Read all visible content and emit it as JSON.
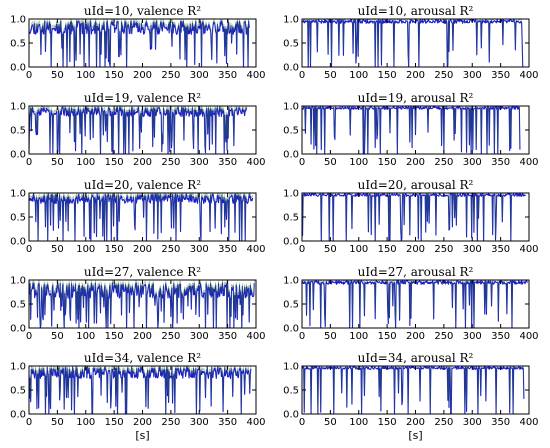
{
  "figure": {
    "x_axis_label": "[s]",
    "line_color": "#1a1ad6",
    "band_color": "#2e6b2e"
  },
  "chart_data": [
    {
      "type": "line",
      "title_prefix": "uId=10, valence",
      "title_math": "R²",
      "xlim": [
        0,
        400
      ],
      "ylim": [
        0,
        1
      ],
      "xticks": [
        "0",
        "50",
        "100",
        "150",
        "200",
        "250",
        "300",
        "350",
        "400"
      ],
      "yticks": [
        "0.0",
        "0.5",
        "1.0"
      ],
      "series": [
        {
          "seed": 11,
          "n": 390,
          "base": 0.82,
          "noise": 0.14,
          "dip_prob": 0.09,
          "values_range": [
            0,
            1
          ]
        }
      ]
    },
    {
      "type": "line",
      "title_prefix": "uId=10, arousal",
      "title_math": "R²",
      "xlim": [
        0,
        400
      ],
      "ylim": [
        0,
        1
      ],
      "xticks": [
        "0",
        "50",
        "100",
        "150",
        "200",
        "250",
        "300",
        "350",
        "400"
      ],
      "yticks": [
        "0.0",
        "0.5",
        "1.0"
      ],
      "series": [
        {
          "seed": 21,
          "n": 390,
          "base": 0.95,
          "noise": 0.04,
          "dip_prob": 0.07,
          "values_range": [
            0,
            1
          ]
        }
      ]
    },
    {
      "type": "line",
      "title_prefix": "uId=19, valence",
      "title_math": "R²",
      "xlim": [
        0,
        400
      ],
      "ylim": [
        0,
        1
      ],
      "xticks": [
        "0",
        "50",
        "100",
        "150",
        "200",
        "250",
        "300",
        "350",
        "400"
      ],
      "yticks": [
        "0.0",
        "0.5",
        "1.0"
      ],
      "series": [
        {
          "seed": 31,
          "n": 385,
          "base": 0.88,
          "noise": 0.1,
          "dip_prob": 0.11,
          "values_range": [
            0,
            1
          ]
        }
      ]
    },
    {
      "type": "line",
      "title_prefix": "uId=19, arousal",
      "title_math": "R²",
      "xlim": [
        0,
        400
      ],
      "ylim": [
        0,
        1
      ],
      "xticks": [
        "0",
        "50",
        "100",
        "150",
        "200",
        "250",
        "300",
        "350",
        "400"
      ],
      "yticks": [
        "0.0",
        "0.5",
        "1.0"
      ],
      "series": [
        {
          "seed": 41,
          "n": 385,
          "base": 0.96,
          "noise": 0.03,
          "dip_prob": 0.08,
          "values_range": [
            0,
            1
          ]
        }
      ]
    },
    {
      "type": "line",
      "title_prefix": "uId=20, valence",
      "title_math": "R²",
      "xlim": [
        0,
        400
      ],
      "ylim": [
        0,
        1
      ],
      "xticks": [
        "0",
        "50",
        "100",
        "150",
        "200",
        "250",
        "300",
        "350",
        "400"
      ],
      "yticks": [
        "0.0",
        "0.5",
        "1.0"
      ],
      "series": [
        {
          "seed": 51,
          "n": 395,
          "base": 0.88,
          "noise": 0.1,
          "dip_prob": 0.1,
          "values_range": [
            0,
            1
          ]
        }
      ]
    },
    {
      "type": "line",
      "title_prefix": "uId=20, arousal",
      "title_math": "R²",
      "xlim": [
        0,
        400
      ],
      "ylim": [
        0,
        1
      ],
      "xticks": [
        "0",
        "50",
        "100",
        "150",
        "200",
        "250",
        "300",
        "350",
        "400"
      ],
      "yticks": [
        "0.0",
        "0.5",
        "1.0"
      ],
      "series": [
        {
          "seed": 61,
          "n": 395,
          "base": 0.96,
          "noise": 0.03,
          "dip_prob": 0.08,
          "values_range": [
            0,
            1
          ]
        }
      ]
    },
    {
      "type": "line",
      "title_prefix": "uId=27, valence",
      "title_math": "R²",
      "xlim": [
        0,
        400
      ],
      "ylim": [
        0,
        1
      ],
      "xticks": [
        "0",
        "50",
        "100",
        "150",
        "200",
        "250",
        "300",
        "350",
        "400"
      ],
      "yticks": [
        "0.0",
        "0.5",
        "1.0"
      ],
      "series": [
        {
          "seed": 71,
          "n": 398,
          "base": 0.78,
          "noise": 0.16,
          "dip_prob": 0.12,
          "values_range": [
            0,
            1
          ]
        }
      ]
    },
    {
      "type": "line",
      "title_prefix": "uId=27, arousal",
      "title_math": "R²",
      "xlim": [
        0,
        400
      ],
      "ylim": [
        0,
        1
      ],
      "xticks": [
        "0",
        "50",
        "100",
        "150",
        "200",
        "250",
        "300",
        "350",
        "400"
      ],
      "yticks": [
        "0.0",
        "0.5",
        "1.0"
      ],
      "series": [
        {
          "seed": 81,
          "n": 398,
          "base": 0.95,
          "noise": 0.04,
          "dip_prob": 0.07,
          "values_range": [
            0,
            1
          ]
        }
      ]
    },
    {
      "type": "line",
      "title_prefix": "uId=34, valence",
      "title_math": "R²",
      "xlim": [
        0,
        400
      ],
      "ylim": [
        0,
        1
      ],
      "xticks": [
        "0",
        "50",
        "100",
        "150",
        "200",
        "250",
        "300",
        "350",
        "400"
      ],
      "yticks": [
        "0.0",
        "0.5",
        "1.0"
      ],
      "series": [
        {
          "seed": 91,
          "n": 392,
          "base": 0.86,
          "noise": 0.12,
          "dip_prob": 0.1,
          "values_range": [
            0,
            1
          ]
        }
      ]
    },
    {
      "type": "line",
      "title_prefix": "uId=34, arousal",
      "title_math": "R²",
      "xlim": [
        0,
        400
      ],
      "ylim": [
        0,
        1
      ],
      "xticks": [
        "0",
        "50",
        "100",
        "150",
        "200",
        "250",
        "300",
        "350",
        "400"
      ],
      "yticks": [
        "0.0",
        "0.5",
        "1.0"
      ],
      "series": [
        {
          "seed": 101,
          "n": 392,
          "base": 0.96,
          "noise": 0.03,
          "dip_prob": 0.06,
          "values_range": [
            0,
            1
          ]
        }
      ]
    }
  ]
}
